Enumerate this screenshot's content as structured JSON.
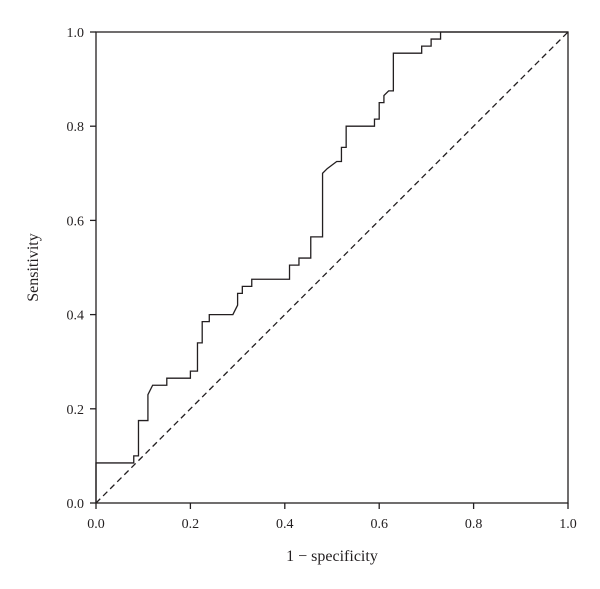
{
  "chart_data": {
    "type": "line",
    "title": "",
    "xlabel": "1 − specificity",
    "ylabel": "Sensitivity",
    "xlim": [
      0,
      1
    ],
    "ylim": [
      0,
      1
    ],
    "grid": false,
    "xticks": [
      "0.0",
      "0.2",
      "0.4",
      "0.6",
      "0.8",
      "1.0"
    ],
    "yticks": [
      "0.0",
      "0.2",
      "0.4",
      "0.6",
      "0.8",
      "1.0"
    ],
    "series": [
      {
        "style": "solid",
        "x": [
          0,
          0,
          0.08,
          0.08,
          0.09,
          0.09,
          0.11,
          0.11,
          0.12,
          0.15,
          0.15,
          0.2,
          0.2,
          0.215,
          0.215,
          0.225,
          0.225,
          0.24,
          0.24,
          0.29,
          0.3,
          0.3,
          0.31,
          0.31,
          0.33,
          0.33,
          0.41,
          0.41,
          0.43,
          0.43,
          0.455,
          0.455,
          0.48,
          0.48,
          0.49,
          0.51,
          0.52,
          0.52,
          0.53,
          0.53,
          0.59,
          0.59,
          0.6,
          0.6,
          0.61,
          0.61,
          0.62,
          0.63,
          0.63,
          0.69,
          0.69,
          0.71,
          0.71,
          0.72,
          0.72,
          0.73,
          0.73,
          1
        ],
        "y": [
          0,
          0.085,
          0.085,
          0.1,
          0.1,
          0.175,
          0.175,
          0.23,
          0.25,
          0.25,
          0.265,
          0.265,
          0.28,
          0.28,
          0.34,
          0.34,
          0.385,
          0.385,
          0.4,
          0.4,
          0.42,
          0.445,
          0.445,
          0.46,
          0.46,
          0.475,
          0.475,
          0.505,
          0.505,
          0.52,
          0.52,
          0.565,
          0.565,
          0.7,
          0.71,
          0.725,
          0.725,
          0.755,
          0.755,
          0.8,
          0.8,
          0.815,
          0.815,
          0.85,
          0.85,
          0.865,
          0.875,
          0.875,
          0.955,
          0.955,
          0.97,
          0.97,
          0.985,
          0.985,
          0.985,
          0.985,
          1,
          1
        ]
      },
      {
        "style": "dashed",
        "x": [
          0,
          1
        ],
        "y": [
          0,
          1
        ]
      }
    ]
  }
}
